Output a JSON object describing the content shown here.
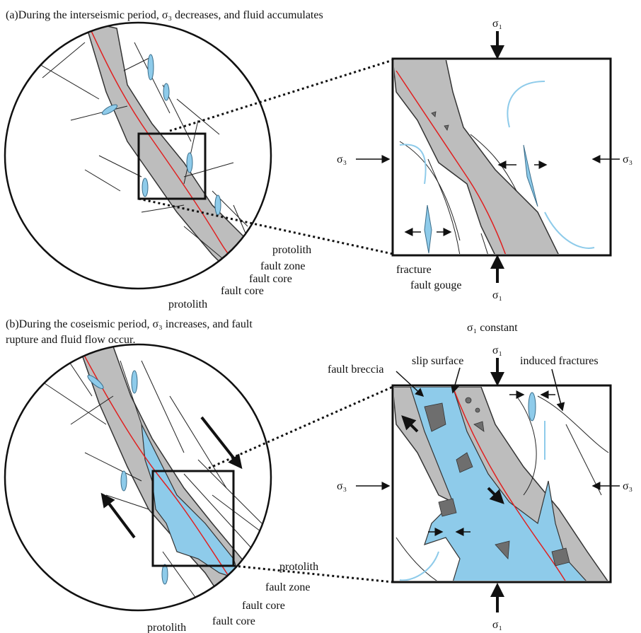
{
  "panels": [
    {
      "title_lines": [
        "(a)During the interseismic period,  σ₃ decreases, and fluid accumulates"
      ],
      "stress_labels": {
        "top": "σ₁",
        "left": "σ₃",
        "right": "σ₃",
        "bottom": "σ₁"
      },
      "circle_labels": [
        "protolith",
        "fault zone",
        "fault core",
        "fault core",
        "protolith"
      ],
      "box_labels": [
        "fracture",
        "fault gouge"
      ]
    },
    {
      "title_lines": [
        "(b)During the coseismic period, σ₃ increases, and fault",
        "rupture and fluid flow occur."
      ],
      "note": "σ₁ constant",
      "stress_labels": {
        "top": "σ₁",
        "left": "σ₃",
        "right": "σ₃",
        "bottom": "σ₁"
      },
      "circle_labels": [
        "protolith",
        "fault zone",
        "fault core",
        "fault core",
        "protolith"
      ],
      "box_labels": [
        "fault breccia",
        "slip surface",
        "induced fractures"
      ]
    }
  ]
}
